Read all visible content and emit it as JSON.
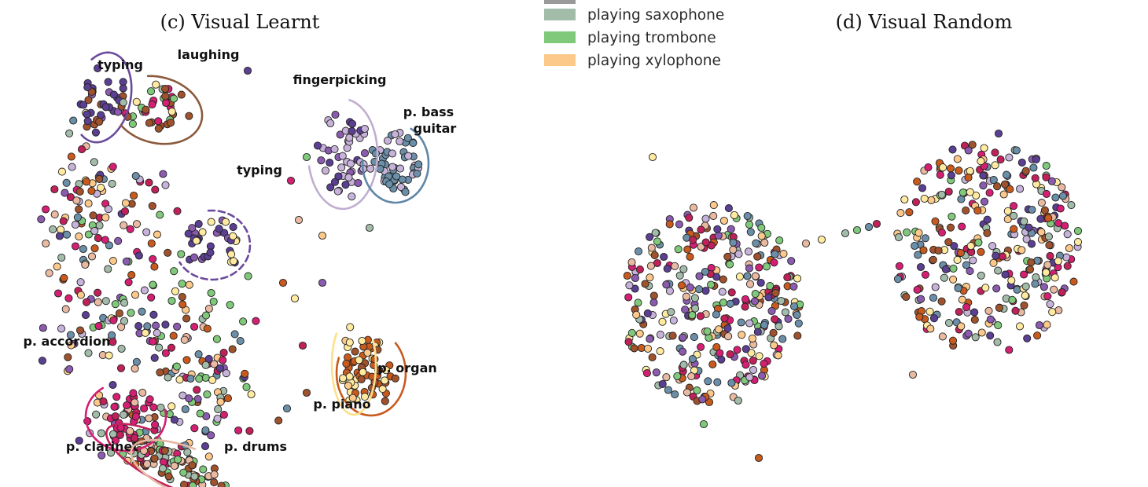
{
  "legend": [
    {
      "label": "playing saxophone",
      "color": "#a3bcaa"
    },
    {
      "label": "playing trombone",
      "color": "#80c97b"
    },
    {
      "label": "playing xylophone",
      "color": "#fdc98a"
    }
  ],
  "chart_data": [
    {
      "type": "scatter",
      "title": "(c) Visual Learnt",
      "xlabel": "",
      "ylabel": "",
      "grid": false,
      "palette": [
        "#d41f73",
        "#5b3f92",
        "#ffeaa0",
        "#a3bcaa",
        "#a0522d",
        "#e9b9a2",
        "#80c97b",
        "#8b5bb0",
        "#c7b3d9",
        "#6b8fa8",
        "#c85a1e",
        "#fdc98a",
        "#c0215a"
      ],
      "clusters": [
        {
          "label": "typing",
          "line1": "typing",
          "line2": "",
          "color": "#6b4a9c",
          "dash": false,
          "cx": -170,
          "cy": 196,
          "rx": 30,
          "ry": 52,
          "rot": -12,
          "n": 34,
          "colors": [
            1,
            1,
            1,
            7,
            4
          ]
        },
        {
          "label": "laughing",
          "line1": "laughing",
          "line2": "",
          "color": "#8b5a3c",
          "dash": false,
          "cx": -100,
          "cy": 180,
          "rx": 52,
          "ry": 36,
          "rot": -15,
          "n": 40,
          "colors": [
            4,
            4,
            4,
            2,
            3,
            6,
            0
          ]
        },
        {
          "label": "typing",
          "line1": "typing",
          "line2": "",
          "color": "#6b4a9c",
          "dash": true,
          "cx": -30,
          "cy": 8,
          "rx": 42,
          "ry": 38,
          "rot": 0,
          "n": 36,
          "colors": [
            1,
            1,
            1,
            7,
            2
          ]
        },
        {
          "label": "fingerpicking",
          "line1": "fingerpicking",
          "line2": "",
          "color": "#c0aed0",
          "dash": false,
          "cx": 136,
          "cy": 124,
          "rx": 38,
          "ry": 64,
          "rot": 0,
          "n": 48,
          "colors": [
            8,
            8,
            8,
            7,
            1
          ]
        },
        {
          "label": "p. bass guitar",
          "line1": "p. bass",
          "line2": "guitar",
          "color": "#5e86a6",
          "dash": false,
          "cx": 203,
          "cy": 112,
          "rx": 36,
          "ry": 44,
          "rot": 0,
          "n": 52,
          "colors": [
            9,
            9,
            9,
            9,
            8
          ]
        },
        {
          "label": "p. organ",
          "line1": "p. organ",
          "line2": "",
          "color": "#c85a1e",
          "dash": false,
          "cx": 172,
          "cy": -155,
          "rx": 38,
          "ry": 48,
          "rot": 0,
          "n": 50,
          "colors": [
            10,
            10,
            10,
            2,
            4
          ]
        },
        {
          "label": "p. piano",
          "line1": "p. piano",
          "line2": "",
          "color": "#fde08b",
          "dash": false,
          "cx": 150,
          "cy": -144,
          "rx": 22,
          "ry": 58,
          "rot": 0,
          "n": 16,
          "colors": [
            2,
            2,
            11
          ]
        },
        {
          "label": "p. accordion",
          "line1": "p. accordion",
          "line2": "",
          "color": "#d41f73",
          "dash": false,
          "cx": -140,
          "cy": -210,
          "rx": 45,
          "ry": 38,
          "rot": 0,
          "n": 40,
          "colors": [
            0,
            0,
            0,
            12,
            5,
            3
          ]
        },
        {
          "label": "p. clarinet",
          "line1": "p. clarinet",
          "line2": "",
          "color": "#c0215a",
          "dash": false,
          "cx": -92,
          "cy": -265,
          "rx": 75,
          "ry": 22,
          "rot": -28,
          "n": 42,
          "colors": [
            3,
            6,
            0,
            12,
            5,
            4
          ]
        },
        {
          "label": "p. drums",
          "line1": "p. drums",
          "line2": "",
          "color": "#e6b8a4",
          "dash": false,
          "cx": -62,
          "cy": -280,
          "rx": 70,
          "ry": 24,
          "rot": -22,
          "n": 34,
          "colors": [
            5,
            3,
            6,
            0,
            4
          ]
        }
      ],
      "background_points": 330
    },
    {
      "type": "scatter",
      "title": "(d) Visual Random",
      "xlabel": "",
      "ylabel": "",
      "grid": false,
      "palette": [
        "#d41f73",
        "#5b3f92",
        "#ffeaa0",
        "#a3bcaa",
        "#a0522d",
        "#e9b9a2",
        "#80c97b",
        "#8b5bb0",
        "#c7b3d9",
        "#6b8fa8",
        "#c85a1e",
        "#fdc98a",
        "#c0215a"
      ],
      "groups": [
        {
          "cx": -180,
          "cy": -25,
          "rx": 115,
          "ry": 130,
          "n": 330
        },
        {
          "cx": 170,
          "cy": 50,
          "rx": 120,
          "ry": 135,
          "n": 330
        }
      ]
    }
  ]
}
